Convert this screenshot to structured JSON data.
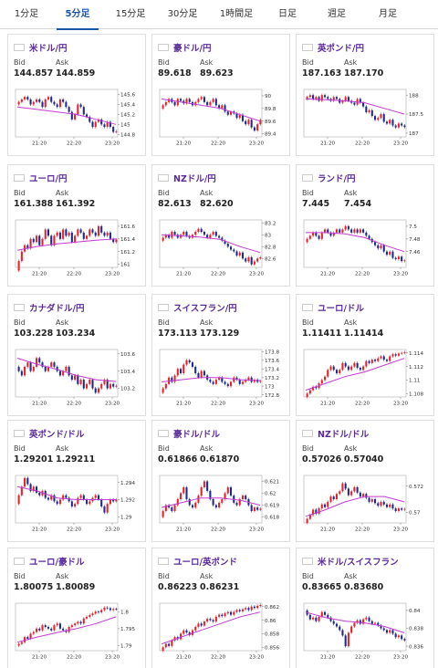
{
  "tabs": [
    {
      "label": "1分足",
      "active": false
    },
    {
      "label": "5分足",
      "active": true
    },
    {
      "label": "15分足",
      "active": false
    },
    {
      "label": "30分足",
      "active": false
    },
    {
      "label": "1時間足",
      "active": false
    },
    {
      "label": "日足",
      "active": false
    },
    {
      "label": "週足",
      "active": false
    },
    {
      "label": "月足",
      "active": false
    }
  ],
  "labels": {
    "bid": "Bid",
    "ask": "Ask"
  },
  "xticks": [
    "21:20",
    "22:20",
    "23:20"
  ],
  "colors": {
    "up": "#e8202a",
    "down": "#1c2a8a",
    "ma": "#c43ad4",
    "pair_text": "#5a2a9a",
    "tab_active": "#1a55a8"
  },
  "cards": [
    {
      "name": "米ドル/円",
      "flag": "flag-us",
      "bid": "144.857",
      "ask": "144.859",
      "yticks": [
        "145.6",
        "145.4",
        "145.2",
        "145",
        "144.8"
      ],
      "ymin": 144.75,
      "ymax": 145.7,
      "closes": [
        145.45,
        145.5,
        145.55,
        145.5,
        145.4,
        145.45,
        145.5,
        145.45,
        145.35,
        145.5,
        145.55,
        145.45,
        145.4,
        145.35,
        145.5,
        145.45,
        145.35,
        145.25,
        145.1,
        145.2,
        145.4,
        145.35,
        145.2,
        145.15,
        145.05,
        144.95,
        145.05,
        145.1,
        145.0,
        144.95,
        145.05,
        144.95,
        144.85,
        144.86
      ],
      "ma": [
        145.35,
        145.3,
        145.25,
        145.2,
        145.1,
        145.0
      ]
    },
    {
      "name": "豪ドル/円",
      "flag": "flag-au",
      "bid": "89.618",
      "ask": "89.623",
      "yticks": [
        "90",
        "89.8",
        "89.6",
        "89.4"
      ],
      "ymin": 89.35,
      "ymax": 90.1,
      "closes": [
        89.85,
        89.9,
        89.95,
        89.9,
        89.85,
        89.95,
        89.92,
        89.88,
        89.95,
        89.9,
        89.85,
        89.9,
        89.95,
        89.98,
        89.9,
        89.85,
        89.9,
        89.95,
        89.85,
        89.8,
        89.85,
        89.75,
        89.7,
        89.75,
        89.72,
        89.65,
        89.7,
        89.6,
        89.55,
        89.62,
        89.5,
        89.45,
        89.55,
        89.62
      ],
      "ma": [
        89.95,
        89.9,
        89.85,
        89.8,
        89.7,
        89.6
      ]
    },
    {
      "name": "英ポンド/円",
      "flag": "flag-gb",
      "bid": "187.163",
      "ask": "187.170",
      "yticks": [
        "188",
        "187.5",
        "187"
      ],
      "ymin": 186.9,
      "ymax": 188.15,
      "closes": [
        187.95,
        188.0,
        187.9,
        187.95,
        187.85,
        188.0,
        187.95,
        187.9,
        187.85,
        187.95,
        187.9,
        187.8,
        187.85,
        187.95,
        187.85,
        187.8,
        187.75,
        187.9,
        187.8,
        187.7,
        187.55,
        187.6,
        187.45,
        187.35,
        187.4,
        187.5,
        187.3,
        187.25,
        187.35,
        187.2,
        187.15,
        187.25,
        187.2,
        187.16
      ],
      "ma": [
        187.9,
        187.88,
        187.85,
        187.8,
        187.65,
        187.5
      ]
    },
    {
      "name": "ユーロ/円",
      "flag": "flag-eu",
      "bid": "161.388",
      "ask": "161.392",
      "yticks": [
        "161.6",
        "161.4",
        "161.2",
        "161"
      ],
      "ymin": 160.95,
      "ymax": 161.7,
      "closes": [
        161.05,
        161.2,
        161.3,
        161.25,
        161.4,
        161.35,
        161.45,
        161.3,
        161.4,
        161.55,
        161.45,
        161.3,
        161.45,
        161.5,
        161.4,
        161.55,
        161.45,
        161.5,
        161.35,
        161.45,
        161.55,
        161.5,
        161.4,
        161.45,
        161.55,
        161.5,
        161.45,
        161.6,
        161.5,
        161.45,
        161.5,
        161.4,
        161.35,
        161.39
      ],
      "ma": [
        161.22,
        161.28,
        161.32,
        161.35,
        161.38,
        161.4
      ]
    },
    {
      "name": "NZドル/円",
      "flag": "flag-nz",
      "bid": "82.613",
      "ask": "82.620",
      "yticks": [
        "83.2",
        "83",
        "82.8",
        "82.6"
      ],
      "ymin": 82.45,
      "ymax": 83.25,
      "closes": [
        82.95,
        83.0,
        82.95,
        83.05,
        83.0,
        82.95,
        83.0,
        83.05,
        82.98,
        82.95,
        83.0,
        83.05,
        83.1,
        83.05,
        83.0,
        82.95,
        83.0,
        83.05,
        82.98,
        82.95,
        82.9,
        82.85,
        82.8,
        82.75,
        82.72,
        82.65,
        82.7,
        82.6,
        82.55,
        82.62,
        82.5,
        82.55,
        82.6,
        82.62
      ],
      "ma": [
        83.0,
        82.98,
        82.96,
        82.92,
        82.8,
        82.7
      ]
    },
    {
      "name": "ランド/円",
      "flag": "flag-za",
      "bid": "7.445",
      "ask": "7.454",
      "yticks": [
        "7.5",
        "7.48",
        "7.46"
      ],
      "ymin": 7.435,
      "ymax": 7.51,
      "closes": [
        7.48,
        7.485,
        7.49,
        7.485,
        7.48,
        7.49,
        7.495,
        7.49,
        7.485,
        7.49,
        7.495,
        7.49,
        7.495,
        7.5,
        7.495,
        7.49,
        7.495,
        7.49,
        7.495,
        7.49,
        7.485,
        7.48,
        7.475,
        7.47,
        7.465,
        7.47,
        7.46,
        7.455,
        7.46,
        7.45,
        7.448,
        7.452,
        7.445,
        7.446
      ],
      "ma": [
        7.49,
        7.49,
        7.488,
        7.482,
        7.47,
        7.46
      ]
    },
    {
      "name": "カナダドル/円",
      "flag": "flag-ca",
      "bid": "103.228",
      "ask": "103.234",
      "yticks": [
        "103.6",
        "103.4",
        "103.2"
      ],
      "ymin": 103.1,
      "ymax": 103.65,
      "closes": [
        103.4,
        103.35,
        103.45,
        103.5,
        103.4,
        103.45,
        103.55,
        103.5,
        103.45,
        103.4,
        103.45,
        103.5,
        103.45,
        103.4,
        103.35,
        103.4,
        103.45,
        103.35,
        103.3,
        103.35,
        103.25,
        103.3,
        103.2,
        103.25,
        103.3,
        103.2,
        103.15,
        103.2,
        103.25,
        103.3,
        103.2,
        103.25,
        103.22,
        103.23
      ],
      "ma": [
        103.55,
        103.48,
        103.42,
        103.35,
        103.3,
        103.28
      ]
    },
    {
      "name": "スイスフラン/円",
      "flag": "flag-ch",
      "bid": "173.113",
      "ask": "173.129",
      "yticks": [
        "173.8",
        "173.6",
        "173.4",
        "173.2",
        "173",
        "172.8"
      ],
      "ymin": 172.75,
      "ymax": 173.85,
      "closes": [
        172.95,
        173.05,
        173.2,
        173.1,
        173.25,
        173.4,
        173.3,
        173.5,
        173.6,
        173.55,
        173.45,
        173.3,
        173.2,
        173.35,
        173.25,
        173.15,
        173.1,
        173.05,
        173.15,
        173.2,
        173.1,
        173.05,
        173.0,
        173.1,
        173.2,
        173.15,
        173.05,
        173.1,
        173.15,
        173.2,
        173.1,
        173.15,
        173.1,
        173.12
      ],
      "ma": [
        173.1,
        173.15,
        173.2,
        173.2,
        173.15,
        173.13
      ]
    },
    {
      "name": "ユーロ/ドル",
      "flag": "flag-eu-us",
      "bid": "1.11411",
      "ask": "1.11414",
      "yticks": [
        "1.114",
        "1.112",
        "1.11",
        "1.108"
      ],
      "ymin": 1.1075,
      "ymax": 1.1145,
      "closes": [
        1.108,
        1.1085,
        1.109,
        1.1088,
        1.1095,
        1.11,
        1.1105,
        1.1115,
        1.112,
        1.1115,
        1.111,
        1.1115,
        1.1125,
        1.112,
        1.1115,
        1.112,
        1.1125,
        1.1118,
        1.1115,
        1.112,
        1.1128,
        1.1125,
        1.113,
        1.1128,
        1.1132,
        1.1135,
        1.113,
        1.1128,
        1.1135,
        1.1138,
        1.1136,
        1.1139,
        1.114,
        1.1141
      ],
      "ma": [
        1.1085,
        1.1095,
        1.1105,
        1.1112,
        1.1122,
        1.1132
      ]
    },
    {
      "name": "英ポンド/ドル",
      "flag": "flag-gb-us",
      "bid": "1.29201",
      "ask": "1.29211",
      "yticks": [
        "1.294",
        "1.292",
        "1.29"
      ],
      "ymin": 1.2893,
      "ymax": 1.2948,
      "closes": [
        1.2925,
        1.2935,
        1.2945,
        1.2938,
        1.293,
        1.2935,
        1.2928,
        1.2925,
        1.293,
        1.2922,
        1.292,
        1.2925,
        1.2918,
        1.2915,
        1.292,
        1.2925,
        1.2922,
        1.2918,
        1.2912,
        1.2915,
        1.2922,
        1.2925,
        1.292,
        1.2915,
        1.2918,
        1.2922,
        1.2925,
        1.292,
        1.2912,
        1.2905,
        1.2915,
        1.292,
        1.2918,
        1.292
      ],
      "ma": [
        1.2935,
        1.293,
        1.2922,
        1.292,
        1.292,
        1.292
      ]
    },
    {
      "name": "豪ドル/ドル",
      "flag": "flag-au-us",
      "bid": "0.61866",
      "ask": "0.61870",
      "yticks": [
        "0.621",
        "0.62",
        "0.619",
        "0.618"
      ],
      "ymin": 0.6175,
      "ymax": 0.6215,
      "closes": [
        0.6185,
        0.619,
        0.6188,
        0.6185,
        0.619,
        0.6195,
        0.62,
        0.6205,
        0.6195,
        0.619,
        0.6188,
        0.6192,
        0.6198,
        0.6205,
        0.621,
        0.6202,
        0.6195,
        0.619,
        0.6188,
        0.6192,
        0.6195,
        0.62,
        0.6205,
        0.6198,
        0.6192,
        0.619,
        0.6195,
        0.6198,
        0.6195,
        0.619,
        0.6185,
        0.6188,
        0.6186,
        0.6187
      ],
      "ma": [
        0.6188,
        0.6192,
        0.6196,
        0.6196,
        0.6194,
        0.619
      ]
    },
    {
      "name": "NZドル/ドル",
      "flag": "flag-nz-us",
      "bid": "0.57026",
      "ask": "0.57040",
      "yticks": [
        "0.572",
        "0.57"
      ],
      "ymin": 0.5692,
      "ymax": 0.5728,
      "closes": [
        0.5695,
        0.5698,
        0.5702,
        0.5699,
        0.5703,
        0.5706,
        0.5704,
        0.5708,
        0.5712,
        0.571,
        0.5714,
        0.5716,
        0.5722,
        0.5718,
        0.5713,
        0.5716,
        0.5719,
        0.5715,
        0.5712,
        0.5714,
        0.5711,
        0.5708,
        0.571,
        0.5707,
        0.5705,
        0.5708,
        0.5706,
        0.5704,
        0.5706,
        0.5703,
        0.5701,
        0.5703,
        0.5702,
        0.57026
      ],
      "ma": [
        0.5697,
        0.5702,
        0.5708,
        0.5712,
        0.5712,
        0.5708
      ]
    },
    {
      "name": "ユーロ/豪ドル",
      "flag": "flag-eu-au",
      "bid": "1.80075",
      "ask": "1.80089",
      "yticks": [
        "1.8",
        "1.795",
        "1.79"
      ],
      "ymin": 1.7885,
      "ymax": 1.8025,
      "closes": [
        1.7905,
        1.791,
        1.7925,
        1.792,
        1.7935,
        1.794,
        1.795,
        1.7945,
        1.796,
        1.7955,
        1.795,
        1.7945,
        1.796,
        1.7965,
        1.795,
        1.7945,
        1.794,
        1.7955,
        1.796,
        1.7965,
        1.797,
        1.7965,
        1.798,
        1.7985,
        1.799,
        1.7995,
        1.8,
        1.7998,
        1.8005,
        1.8012,
        1.801,
        1.8005,
        1.8008,
        1.80075
      ],
      "ma": [
        1.791,
        1.7925,
        1.7938,
        1.795,
        1.7965,
        1.7985
      ]
    },
    {
      "name": "ユーロ/英ポンド",
      "flag": "flag-eu-gb",
      "bid": "0.86223",
      "ask": "0.86231",
      "yticks": [
        "0.862",
        "0.86",
        "0.858",
        "0.856"
      ],
      "ymin": 0.8555,
      "ymax": 0.8625,
      "closes": [
        0.856,
        0.8565,
        0.8562,
        0.857,
        0.8575,
        0.8572,
        0.858,
        0.8585,
        0.8582,
        0.8578,
        0.8585,
        0.859,
        0.8595,
        0.8592,
        0.8598,
        0.8602,
        0.86,
        0.8598,
        0.8605,
        0.8608,
        0.8606,
        0.861,
        0.8612,
        0.8608,
        0.8612,
        0.8615,
        0.8613,
        0.8616,
        0.8618,
        0.8615,
        0.862,
        0.8618,
        0.8621,
        0.86223
      ],
      "ma": [
        0.8565,
        0.8575,
        0.8585,
        0.8595,
        0.8605,
        0.8612
      ]
    },
    {
      "name": "米ドル/スイスフラン",
      "flag": "flag-us-ch",
      "bid": "0.83665",
      "ask": "0.83680",
      "yticks": [
        "0.84",
        "0.838",
        "0.836"
      ],
      "ymin": 0.8355,
      "ymax": 0.8408,
      "closes": [
        0.8395,
        0.839,
        0.8392,
        0.8388,
        0.8393,
        0.8398,
        0.8395,
        0.8392,
        0.8388,
        0.8385,
        0.8382,
        0.8378,
        0.8372,
        0.836,
        0.8375,
        0.8382,
        0.8386,
        0.8389,
        0.8385,
        0.839,
        0.8392,
        0.8388,
        0.8385,
        0.8386,
        0.8383,
        0.838,
        0.8378,
        0.8375,
        0.8378,
        0.8374,
        0.837,
        0.8372,
        0.8368,
        0.83665
      ],
      "ma": [
        0.8398,
        0.8392,
        0.8388,
        0.8386,
        0.8382,
        0.8375
      ]
    }
  ]
}
